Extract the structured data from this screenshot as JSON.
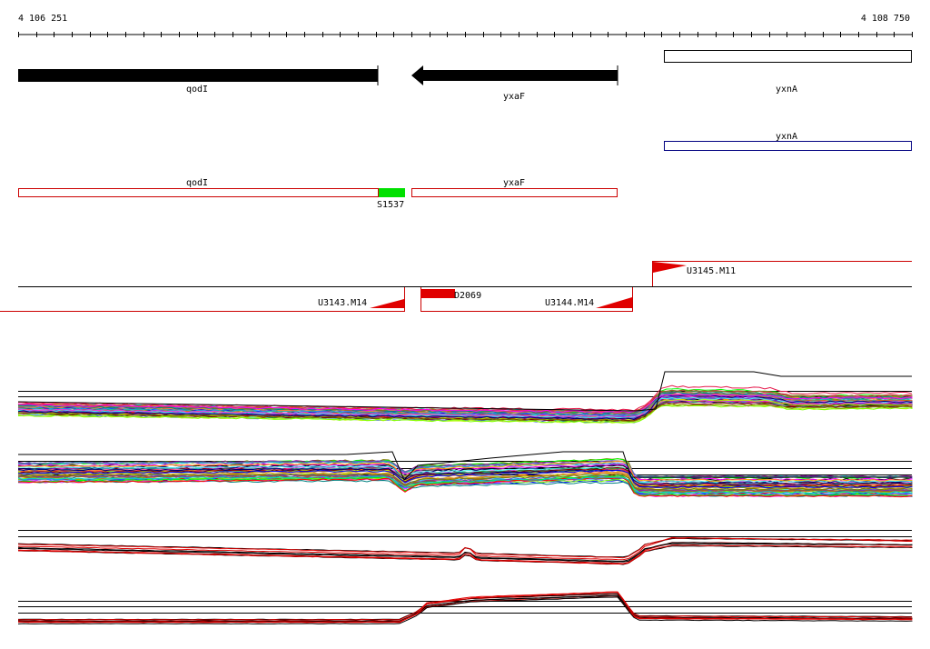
{
  "coords": {
    "start": "4 106 251",
    "end": "4 108 750"
  },
  "genes": {
    "qodI": "qodI",
    "yxaF": "yxaF",
    "yxnA": "yxnA",
    "yxnA_box": "yxnA"
  },
  "transcripts": {
    "qodI": "qodI",
    "yxaF": "yxaF",
    "S1537": "S1537"
  },
  "segments": {
    "U3145": "U3145.M11",
    "U3143": "U3143.M14",
    "D2069": "D2069",
    "U3144": "U3144.M14"
  },
  "colors": {
    "gene_fill": "#000000",
    "transcript_outline": "#cc0000",
    "yxnA_outline": "#000080",
    "S1537_fill": "#00e000",
    "segment_red": "#e00000",
    "segment_line": "#000000"
  }
}
